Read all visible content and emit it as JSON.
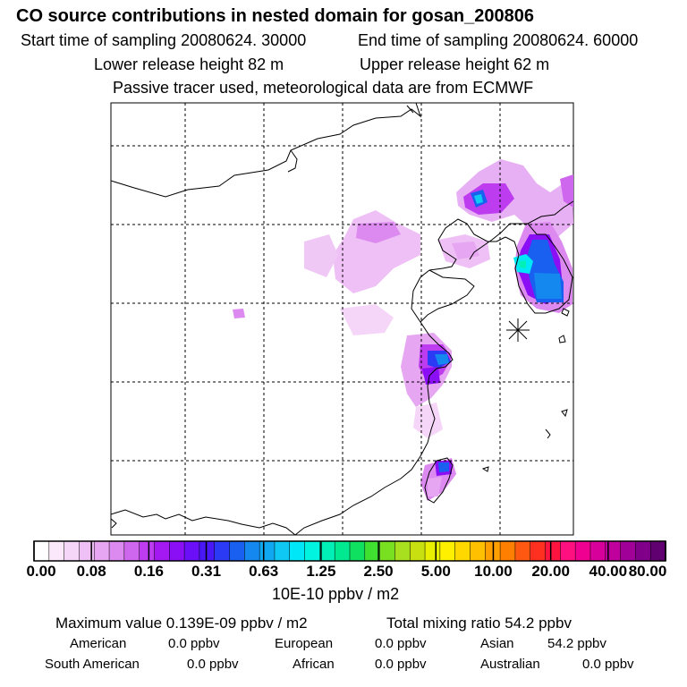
{
  "header": {
    "title": "CO  source contributions in nested domain for gosan_200806",
    "start_time": "Start time of sampling 20080624. 30000",
    "end_time": "End time of sampling 20080624. 60000",
    "lower_height": "Lower release height   82 m",
    "upper_height": "Upper release height   62 m",
    "tracer_note": "Passive tracer used, meteorological data are from ECMWF"
  },
  "colorbar": {
    "labels": [
      "0.00",
      "0.08",
      "0.16",
      "0.31",
      "0.63",
      "1.25",
      "2.50",
      "5.00",
      "10.00",
      "20.00",
      "40.00",
      "80.00"
    ],
    "colors": [
      "#ffffff",
      "#fbe8fb",
      "#f6d6f8",
      "#efc0f5",
      "#e6a6f2",
      "#dd8af0",
      "#cf67ee",
      "#bd3cf0",
      "#a418f2",
      "#8a0ff5",
      "#6a0ff7",
      "#4a18f7",
      "#2a3af5",
      "#1a60f0",
      "#1488ee",
      "#10a8f0",
      "#10c8f4",
      "#00e8f8",
      "#00f4e0",
      "#00f0b8",
      "#00e890",
      "#10e060",
      "#40e030",
      "#78e020",
      "#a8e020",
      "#c8e010",
      "#e8f000",
      "#fff000",
      "#ffd800",
      "#ffc000",
      "#ffa000",
      "#ff8000",
      "#ff5810",
      "#ff3020",
      "#ff1440",
      "#ff1080",
      "#f00090",
      "#d8009a",
      "#c0009c",
      "#a00098",
      "#80008a",
      "#600070"
    ],
    "unit": "10E-10 ppbv / m2"
  },
  "stats": {
    "maximum": "Maximum value  0.139E-09 ppbv / m2",
    "total": "Total mixing ratio       54.2 ppbv",
    "american_label": "American",
    "american_value": "0.0 ppbv",
    "european_label": "European",
    "european_value": "0.0 ppbv",
    "asian_label": "Asian",
    "asian_value": "54.2 ppbv",
    "south_american_label": "South American",
    "south_american_value": "0.0 ppbv",
    "african_label": "African",
    "african_value": "0.0 ppbv",
    "australian_label": "Australian",
    "australian_value": "0.0 ppbv"
  }
}
